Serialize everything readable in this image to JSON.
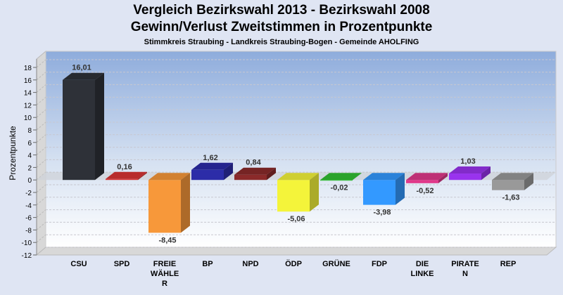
{
  "chart_data": {
    "type": "bar",
    "title": "Vergleich Bezirkswahl 2013 - Bezirkswahl 2008",
    "subtitle": "Gewinn/Verlust Zweitstimmen in Prozentpunkte",
    "subtitle2": "Stimmkreis Straubing - Landkreis Straubing-Bogen - Gemeinde AHOLFING",
    "xlabel": "",
    "ylabel": "Prozentpunkte",
    "ylim": [
      -12,
      18
    ],
    "yticks": [
      18,
      16,
      14,
      12,
      10,
      8,
      6,
      4,
      2,
      0,
      -2,
      -4,
      -6,
      -8,
      -10,
      -12
    ],
    "grid": true,
    "categories": [
      [
        "CSU"
      ],
      [
        "SPD"
      ],
      [
        "FREIE",
        "WÄHLE",
        "R"
      ],
      [
        "BP"
      ],
      [
        "NPD"
      ],
      [
        "ÖDP"
      ],
      [
        "GRÜNE"
      ],
      [
        "FDP"
      ],
      [
        "DIE",
        "LINKE"
      ],
      [
        "PIRATE",
        "N"
      ],
      [
        "REP"
      ]
    ],
    "values": [
      16.01,
      0.16,
      -8.45,
      1.62,
      0.84,
      -5.06,
      -0.02,
      -3.98,
      -0.52,
      1.03,
      -1.63
    ],
    "labels": [
      "16,01",
      "0,16",
      "-8,45",
      "1,62",
      "0,84",
      "-5,06",
      "-0,02",
      "-3,98",
      "-0,52",
      "1,03",
      "-1,63"
    ],
    "colors": [
      "#2e3138",
      "#d83434",
      "#f7983a",
      "#2c2ca8",
      "#8b2a2a",
      "#f4f43a",
      "#33c033",
      "#3399ff",
      "#e0388a",
      "#9933ee",
      "#999999"
    ]
  }
}
